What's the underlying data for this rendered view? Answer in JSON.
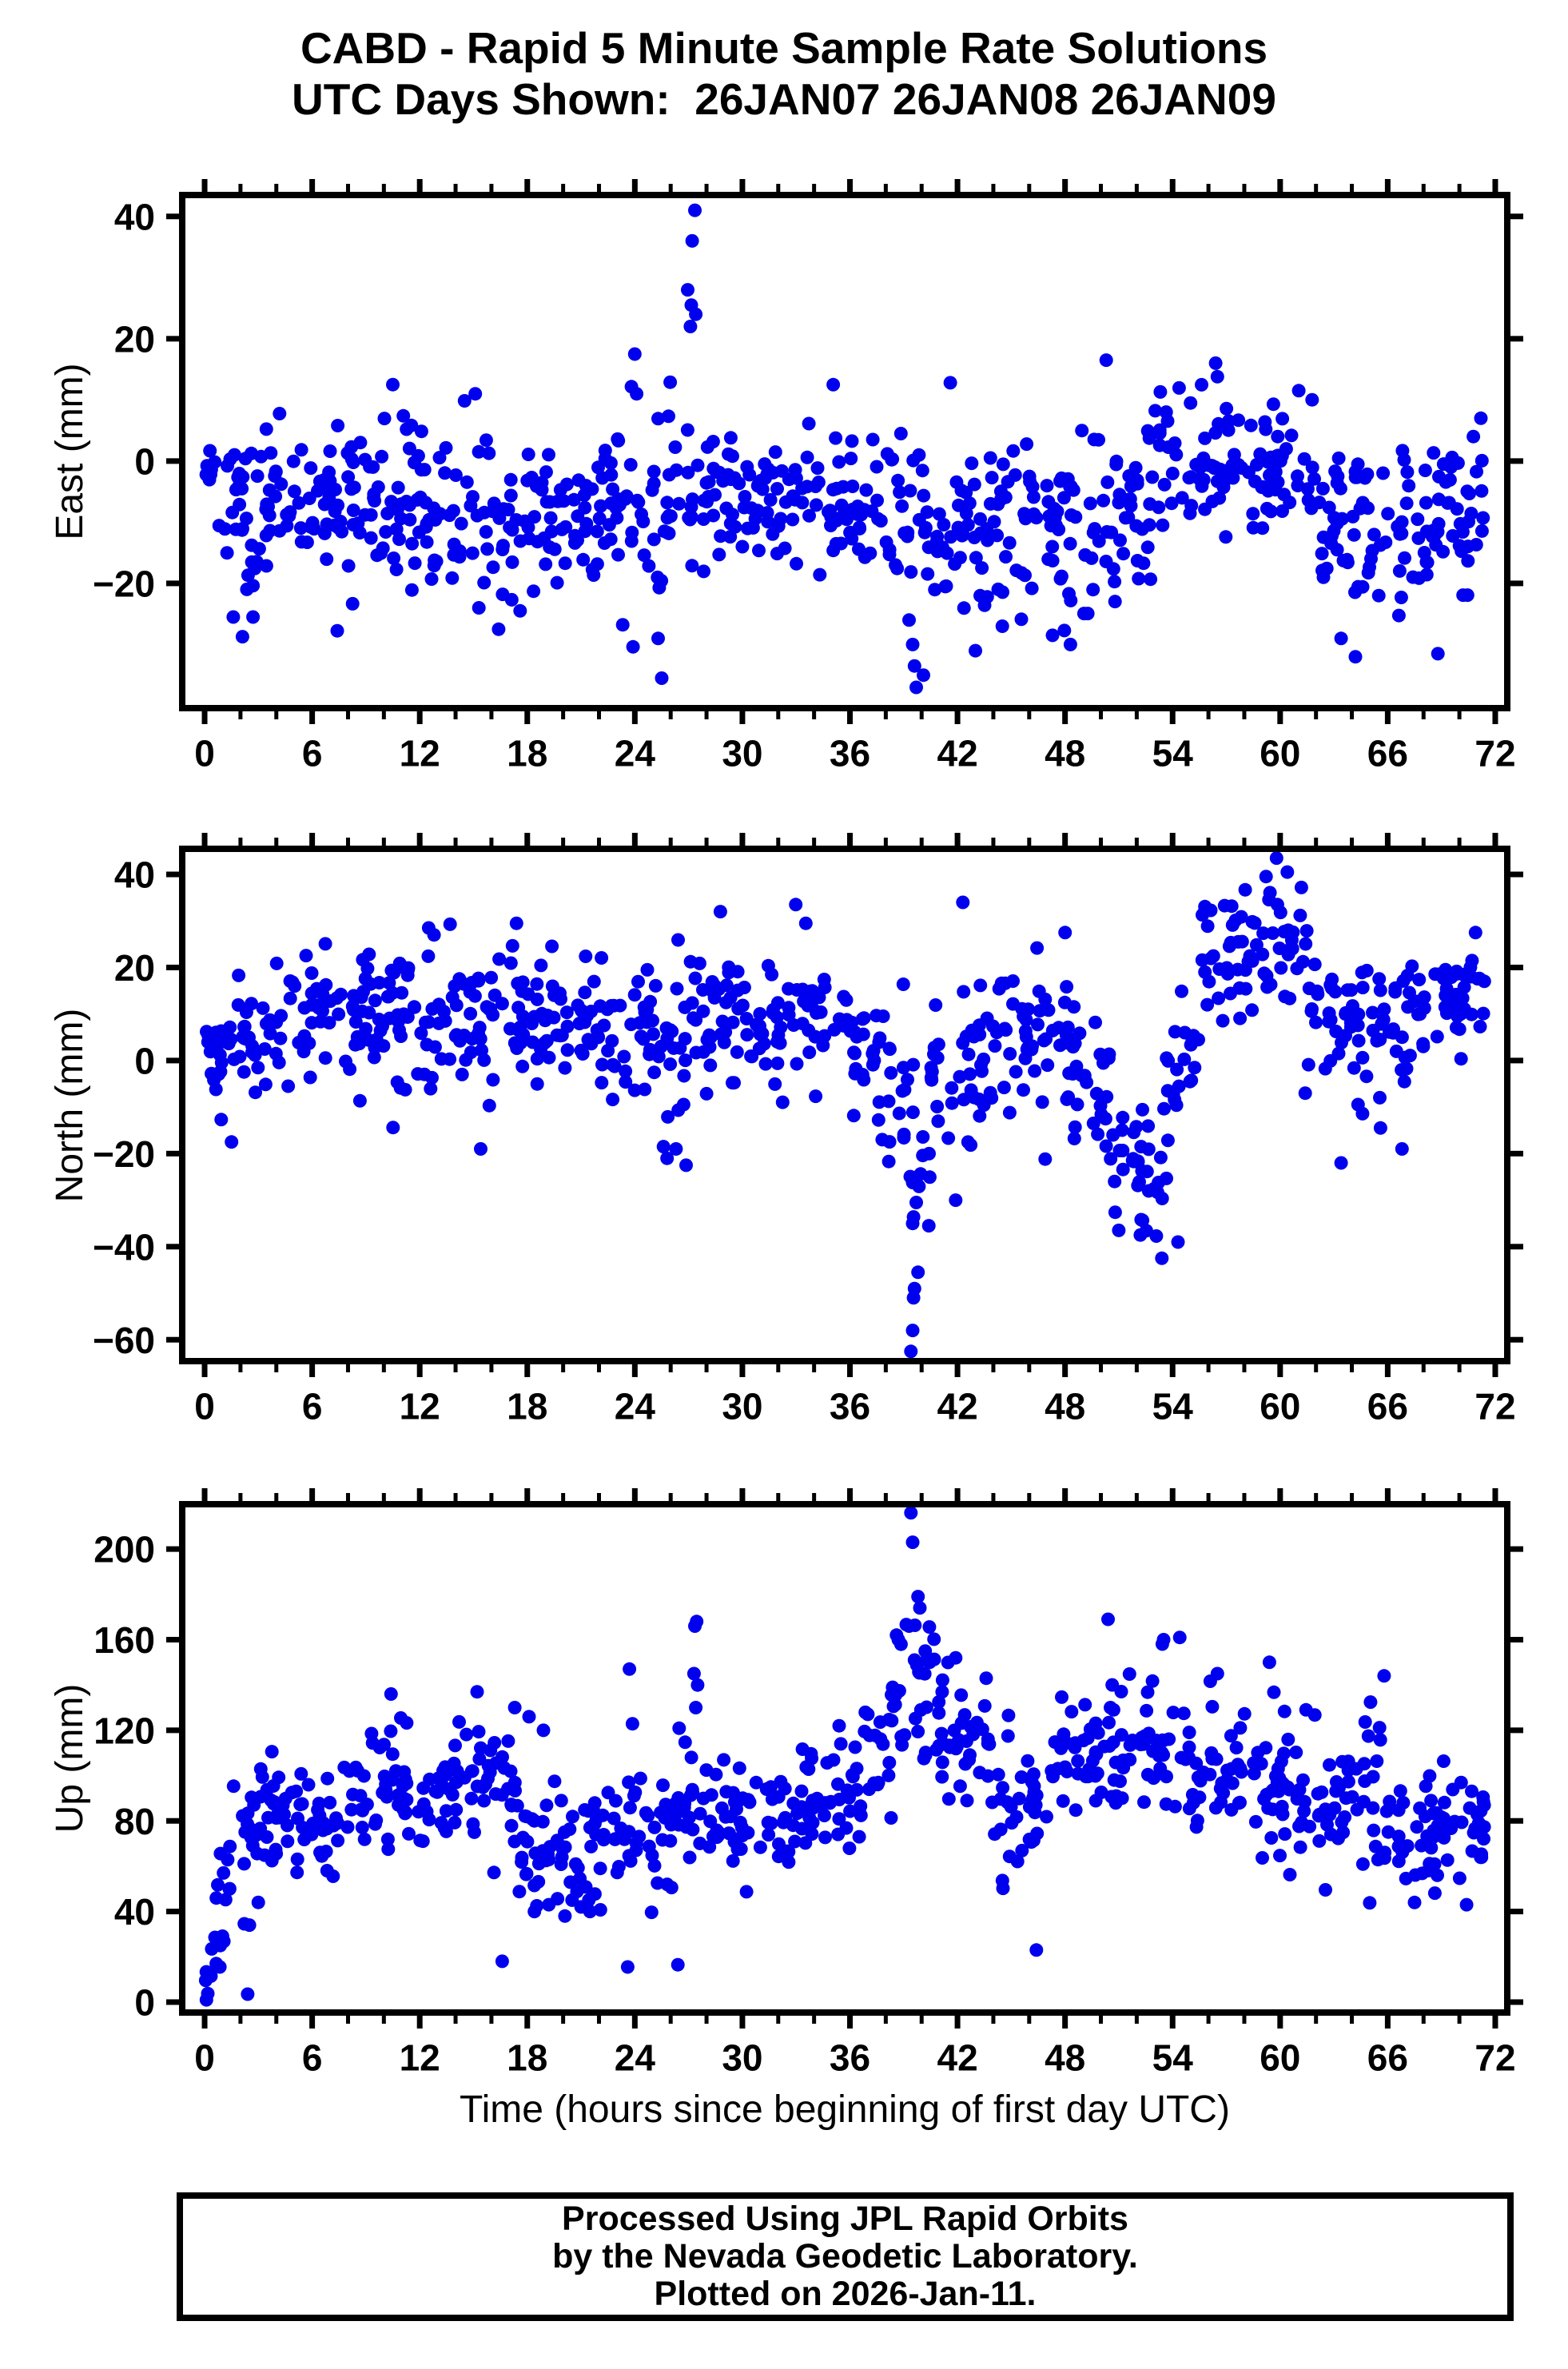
{
  "header": {
    "title": "CABD - Rapid 5 Minute Sample Rate Solutions",
    "subtitle": "UTC Days Shown:  26JAN07 26JAN08 26JAN09"
  },
  "footer": {
    "line1": "Processed Using JPL Rapid Orbits",
    "line2": "by the Nevada Geodetic Laboratory.",
    "line3": "Plotted on 2026-Jan-11."
  },
  "chart_data": {
    "type": "scatter",
    "title": "CABD - Rapid 5 Minute Sample Rate Solutions",
    "subtitle": "UTC Days Shown:  26JAN07 26JAN08 26JAN09",
    "grid": false,
    "legend": "none",
    "marker": {
      "color": "#0000ee",
      "radius": 8.5
    },
    "frame_color": "#000000",
    "x_axis": {
      "label": "Time (hours since beginning of first day UTC)",
      "lim": [
        -1.25,
        72.67
      ],
      "ticks": [
        0,
        6,
        12,
        18,
        24,
        30,
        36,
        42,
        48,
        54,
        60,
        66,
        72
      ],
      "minor_step": 2
    },
    "panels": [
      {
        "id": "east",
        "ylabel": "East (mm)",
        "ylim": [
          -40.4,
          43.5
        ],
        "yticks": [
          -20,
          0,
          20,
          40
        ],
        "seed": 11,
        "segments": [
          [
            0.05,
            0.6,
            8,
            0,
            0,
            2.5
          ],
          [
            0.5,
            3,
            30,
            -10,
            -10,
            8
          ],
          [
            3,
            10,
            85,
            -7,
            -7,
            5.5
          ],
          [
            10,
            16,
            68,
            -9,
            -9,
            6.5
          ],
          [
            16,
            23,
            80,
            -9,
            -9,
            6
          ],
          [
            23,
            26.5,
            40,
            -8,
            -8,
            9
          ],
          [
            26.8,
            28,
            13,
            -4,
            -4,
            9
          ],
          [
            28,
            36,
            95,
            -6.5,
            -6.5,
            5.5
          ],
          [
            36,
            39,
            34,
            -8,
            -9,
            6
          ],
          [
            39,
            41,
            22,
            -13,
            -13,
            9
          ],
          [
            41,
            48,
            80,
            -10,
            -10,
            7
          ],
          [
            48,
            53,
            56,
            -11,
            -9,
            7
          ],
          [
            53,
            58,
            56,
            0,
            2,
            6
          ],
          [
            58,
            62,
            46,
            0,
            -3,
            6
          ],
          [
            62,
            66,
            46,
            -10,
            -12,
            7
          ],
          [
            66,
            69,
            34,
            -12,
            -10,
            7
          ],
          [
            69,
            71.5,
            30,
            -8,
            -8,
            6
          ]
        ],
        "outliers": [
          [
            1.6,
            -25.5
          ],
          [
            2.7,
            -25.5
          ],
          [
            10.5,
            12.5
          ],
          [
            15.1,
            11
          ],
          [
            15.3,
            -24
          ],
          [
            16.4,
            -27.5
          ],
          [
            17.6,
            -24.5
          ],
          [
            24.0,
            17.5
          ],
          [
            24.1,
            11
          ],
          [
            25.3,
            -29
          ],
          [
            25.5,
            -35.5
          ],
          [
            27.35,
            41
          ],
          [
            27.2,
            36
          ],
          [
            26.95,
            28
          ],
          [
            27.15,
            25.5
          ],
          [
            27.4,
            24
          ],
          [
            27.1,
            22
          ],
          [
            39.5,
            -30
          ],
          [
            39.6,
            -33.5
          ],
          [
            39.7,
            -37
          ],
          [
            40.1,
            -35
          ],
          [
            39.3,
            -26
          ],
          [
            41.6,
            12.8
          ],
          [
            43.0,
            -31
          ],
          [
            44.5,
            -27
          ],
          [
            47.3,
            -28.5
          ],
          [
            48.3,
            -30
          ],
          [
            50.3,
            16.5
          ],
          [
            56.4,
            16
          ],
          [
            56.5,
            13.8
          ],
          [
            55.0,
            9.5
          ],
          [
            63.4,
            -29
          ],
          [
            64.2,
            -32
          ],
          [
            65.5,
            -22
          ],
          [
            68.8,
            -31.5
          ],
          [
            71.2,
            7
          ]
        ]
      },
      {
        "id": "north",
        "ylabel": "North (mm)",
        "ylim": [
          -64.6,
          45.5
        ],
        "yticks": [
          -60,
          -40,
          -20,
          0,
          20,
          40
        ],
        "seed": 22,
        "segments": [
          [
            0.1,
            0.6,
            7,
            2,
            2,
            3
          ],
          [
            0.5,
            4,
            42,
            6,
            6,
            6
          ],
          [
            4,
            12,
            92,
            9,
            9,
            7
          ],
          [
            12,
            16,
            46,
            8,
            8,
            8
          ],
          [
            16,
            20,
            46,
            11,
            11,
            7
          ],
          [
            20,
            25,
            56,
            8,
            8,
            7
          ],
          [
            25,
            27,
            22,
            0,
            0,
            9
          ],
          [
            27,
            36,
            102,
            9,
            9,
            7
          ],
          [
            36,
            39,
            34,
            2,
            -2,
            8
          ],
          [
            39,
            40.5,
            16,
            -14,
            -14,
            8
          ],
          [
            40.5,
            44,
            40,
            -2,
            0,
            8
          ],
          [
            44,
            48.5,
            52,
            4,
            6,
            8
          ],
          [
            48.5,
            50.5,
            22,
            0,
            -10,
            8
          ],
          [
            50.5,
            53.5,
            34,
            -20,
            -28,
            7
          ],
          [
            53.5,
            55.5,
            22,
            -10,
            8,
            9
          ],
          [
            55.5,
            61.5,
            68,
            22,
            25,
            7
          ],
          [
            61.5,
            64,
            28,
            15,
            8,
            7
          ],
          [
            64,
            67,
            34,
            6,
            6,
            7
          ],
          [
            67,
            71.5,
            52,
            12,
            14,
            6
          ]
        ],
        "outliers": [
          [
            1.5,
            -17.5
          ],
          [
            12.5,
            28.5
          ],
          [
            12.8,
            27
          ],
          [
            15.4,
            -19
          ],
          [
            17.4,
            29.5
          ],
          [
            25.6,
            -18.5
          ],
          [
            25.8,
            -21
          ],
          [
            26.3,
            -19
          ],
          [
            37.8,
            -17
          ],
          [
            39.4,
            -62.5
          ],
          [
            39.5,
            -58
          ],
          [
            39.55,
            -51
          ],
          [
            39.6,
            -49
          ],
          [
            39.8,
            -45.5
          ],
          [
            39.5,
            -35
          ],
          [
            40.4,
            -35.5
          ],
          [
            39.7,
            -30.5
          ],
          [
            41.9,
            -30
          ],
          [
            42.3,
            34
          ],
          [
            48.0,
            27.5
          ],
          [
            51.0,
            -36.5
          ],
          [
            52.2,
            -37.5
          ],
          [
            53.4,
            -42.5
          ],
          [
            54.3,
            -39
          ],
          [
            59.8,
            43.5
          ],
          [
            60.4,
            40.5
          ],
          [
            61.4,
            -7
          ],
          [
            63.4,
            -22
          ],
          [
            65.6,
            -14.5
          ],
          [
            66.8,
            -19
          ],
          [
            70.9,
            27.5
          ]
        ]
      },
      {
        "id": "up",
        "ylabel": "Up (mm)",
        "ylim": [
          -4.6,
          219.8
        ],
        "yticks": [
          0,
          40,
          80,
          120,
          160,
          200
        ],
        "seed": 33,
        "segments": [
          [
            0.05,
            0.6,
            8,
            5,
            25,
            8
          ],
          [
            0.5,
            1.5,
            12,
            38,
            60,
            14
          ],
          [
            1.5,
            3,
            18,
            60,
            75,
            14
          ],
          [
            3,
            9,
            68,
            80,
            85,
            13
          ],
          [
            9,
            12,
            34,
            95,
            95,
            14
          ],
          [
            12,
            16,
            46,
            92,
            92,
            14
          ],
          [
            16,
            17.5,
            17,
            85,
            85,
            18
          ],
          [
            17.5,
            23,
            62,
            66,
            66,
            15
          ],
          [
            23,
            24.5,
            16,
            72,
            72,
            16
          ],
          [
            24.5,
            27,
            28,
            76,
            76,
            15
          ],
          [
            27,
            28,
            11,
            90,
            90,
            14
          ],
          [
            28,
            33,
            56,
            80,
            80,
            14
          ],
          [
            33,
            36,
            34,
            88,
            88,
            13
          ],
          [
            36,
            38.3,
            26,
            100,
            115,
            13
          ],
          [
            38.3,
            40.8,
            28,
            138,
            138,
            16
          ],
          [
            40.8,
            44,
            38,
            120,
            110,
            14
          ],
          [
            44,
            47,
            34,
            90,
            85,
            17
          ],
          [
            47,
            50,
            34,
            105,
            110,
            14
          ],
          [
            50,
            55,
            58,
            110,
            110,
            15
          ],
          [
            55,
            58,
            34,
            100,
            100,
            15
          ],
          [
            58,
            62,
            46,
            100,
            95,
            16
          ],
          [
            62,
            66,
            46,
            90,
            90,
            15
          ],
          [
            66,
            69,
            34,
            75,
            72,
            14
          ],
          [
            69,
            71.5,
            30,
            80,
            82,
            11
          ]
        ],
        "outliers": [
          [
            0.1,
            1
          ],
          [
            0.65,
            17
          ],
          [
            0.85,
            15.5
          ],
          [
            2.4,
            3.5
          ],
          [
            2.5,
            34
          ],
          [
            10.4,
            136
          ],
          [
            15.2,
            137
          ],
          [
            16.6,
            18
          ],
          [
            17.3,
            130
          ],
          [
            18.4,
            40
          ],
          [
            19.2,
            43
          ],
          [
            20.1,
            38
          ],
          [
            21.0,
            42
          ],
          [
            20.5,
            45
          ],
          [
            18.1,
            126
          ],
          [
            18.9,
            120
          ],
          [
            23.6,
            15.5
          ],
          [
            23.7,
            147
          ],
          [
            26.4,
            16.5
          ],
          [
            27.35,
            166
          ],
          [
            27.45,
            168
          ],
          [
            27.3,
            145
          ],
          [
            27.5,
            140
          ],
          [
            27.4,
            130
          ],
          [
            35.4,
            122
          ],
          [
            39.4,
            216
          ],
          [
            39.5,
            203
          ],
          [
            39.8,
            179
          ],
          [
            39.9,
            174
          ],
          [
            39.3,
            166
          ],
          [
            38.6,
            162
          ],
          [
            38.7,
            160
          ],
          [
            38.85,
            158
          ],
          [
            40.2,
            155
          ],
          [
            39.6,
            151
          ],
          [
            40.45,
            150
          ],
          [
            41.9,
            152
          ],
          [
            43.6,
            143
          ],
          [
            46.4,
            23
          ],
          [
            50.4,
            169
          ],
          [
            53.5,
            160
          ],
          [
            54.4,
            161
          ],
          [
            56.5,
            145
          ],
          [
            59.4,
            150
          ],
          [
            65.8,
            144
          ],
          [
            67.5,
            44
          ],
          [
            70.4,
            43
          ]
        ]
      }
    ]
  }
}
